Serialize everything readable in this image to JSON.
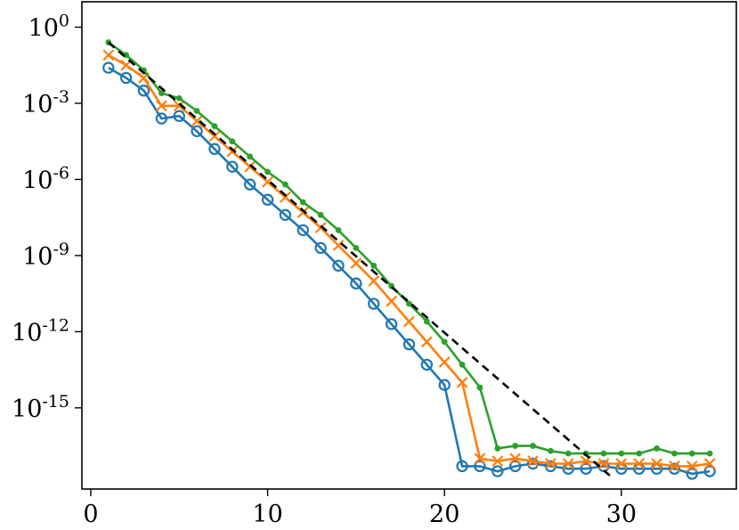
{
  "chart_data": {
    "type": "line",
    "title": "",
    "xlabel": "",
    "ylabel": "",
    "xlim": [
      -0.5,
      36.5
    ],
    "ylim_log10": [
      -18.2,
      1.0
    ],
    "y_scale": "log",
    "grid": false,
    "legend": "none",
    "x_ticks": [
      0,
      10,
      20,
      30
    ],
    "x_tick_labels": [
      "0",
      "10",
      "20",
      "30"
    ],
    "y_ticks_log10": [
      0,
      -3,
      -6,
      -9,
      -12,
      -15
    ],
    "y_tick_labels": [
      {
        "base": "10",
        "exp": "0"
      },
      {
        "base": "10",
        "exp": "-3"
      },
      {
        "base": "10",
        "exp": "-6"
      },
      {
        "base": "10",
        "exp": "-9"
      },
      {
        "base": "10",
        "exp": "-12"
      },
      {
        "base": "10",
        "exp": "-15"
      }
    ],
    "series": [
      {
        "color": "#1f77b4",
        "marker": "circle",
        "x": [
          1,
          2,
          3,
          4,
          5,
          6,
          7,
          8,
          9,
          10,
          11,
          12,
          13,
          14,
          15,
          16,
          17,
          18,
          19,
          20,
          21,
          22,
          23,
          24,
          25,
          26,
          27,
          28,
          29,
          30,
          31,
          32,
          33,
          34,
          35
        ],
        "log10_y": [
          -1.6,
          -2.0,
          -2.5,
          -3.6,
          -3.5,
          -4.1,
          -4.8,
          -5.5,
          -6.2,
          -6.8,
          -7.4,
          -8.0,
          -8.7,
          -9.4,
          -10.1,
          -10.9,
          -11.7,
          -12.5,
          -13.3,
          -14.1,
          -17.3,
          -17.3,
          -17.5,
          -17.3,
          -17.2,
          -17.3,
          -17.4,
          -17.4,
          -17.3,
          -17.4,
          -17.4,
          -17.4,
          -17.4,
          -17.6,
          -17.5
        ]
      },
      {
        "color": "#ff7f0e",
        "marker": "x",
        "x": [
          1,
          2,
          3,
          4,
          5,
          6,
          7,
          8,
          9,
          10,
          11,
          12,
          13,
          14,
          15,
          16,
          17,
          18,
          19,
          20,
          21,
          22,
          23,
          24,
          25,
          26,
          27,
          28,
          29,
          30,
          31,
          32,
          33,
          34,
          35
        ],
        "log10_y": [
          -1.1,
          -1.5,
          -2.0,
          -3.1,
          -3.1,
          -3.7,
          -4.3,
          -4.9,
          -5.5,
          -6.1,
          -6.7,
          -7.3,
          -7.9,
          -8.6,
          -9.3,
          -10.0,
          -10.8,
          -11.6,
          -12.4,
          -13.2,
          -14.0,
          -17.0,
          -17.1,
          -17.0,
          -17.1,
          -17.2,
          -17.2,
          -17.1,
          -17.2,
          -17.2,
          -17.2,
          -17.2,
          -17.3,
          -17.3,
          -17.2
        ]
      },
      {
        "color": "#2ca02c",
        "marker": "dot",
        "x": [
          1,
          2,
          3,
          4,
          5,
          6,
          7,
          8,
          9,
          10,
          11,
          12,
          13,
          14,
          15,
          16,
          17,
          18,
          19,
          20,
          21,
          22,
          23,
          24,
          25,
          26,
          27,
          28,
          29,
          30,
          31,
          32,
          33,
          34,
          35
        ],
        "log10_y": [
          -0.6,
          -1.1,
          -1.7,
          -2.6,
          -2.8,
          -3.3,
          -3.9,
          -4.5,
          -5.1,
          -5.7,
          -6.2,
          -6.9,
          -7.4,
          -8.0,
          -8.7,
          -9.4,
          -10.2,
          -10.9,
          -11.6,
          -12.4,
          -13.3,
          -14.2,
          -16.6,
          -16.5,
          -16.5,
          -16.7,
          -16.8,
          -16.8,
          -16.8,
          -16.8,
          -16.8,
          -16.6,
          -16.8,
          -16.8,
          -16.8
        ]
      },
      {
        "color": "#000000",
        "style": "dashed",
        "x": [
          1,
          29.4
        ],
        "log10_y": [
          -0.6,
          -17.7
        ]
      }
    ]
  }
}
